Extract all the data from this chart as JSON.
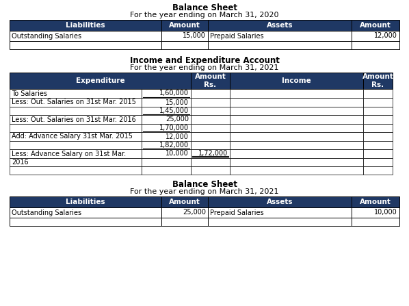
{
  "header_color": "#1F3864",
  "header_text_color": "#FFFFFF",
  "text_color": "#000000",
  "border_color": "#000000",
  "title_fontsize": 8.5,
  "subtitle_fontsize": 8,
  "header_fontsize": 7.5,
  "cell_fontsize": 7,
  "bs2020_title": "Balance Sheet",
  "bs2020_subtitle": "For the year ending on March 31, 2020",
  "bs2020_headers": [
    "Liabilities",
    "Amount",
    "Assets",
    "Amount"
  ],
  "bs2020_row1": [
    "Outstanding Salaries",
    "15,000",
    "Prepaid Salaries",
    "12,000"
  ],
  "bs2020_row2": [
    "",
    "",
    "",
    ""
  ],
  "ie_title": "Income and Expenditure Account",
  "ie_subtitle": "For the year ending on March 31, 2021",
  "bs2021_title": "Balance Sheet",
  "bs2021_subtitle": "For the year ending on March 31, 2021",
  "bs2021_headers": [
    "Liabilities",
    "Amount",
    "Assets",
    "Amount"
  ],
  "bs2021_row1": [
    "Outstanding Salaries",
    "25,000",
    "Prepaid Salaries",
    "10,000"
  ],
  "bs2021_row2": [
    "",
    "",
    "",
    ""
  ]
}
